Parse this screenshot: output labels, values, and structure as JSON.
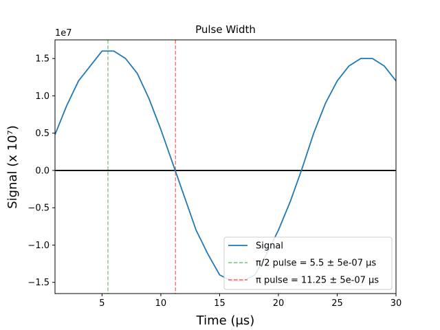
{
  "chart_data": {
    "type": "line",
    "title": "Pulse Width",
    "xlabel": "Time (μs)",
    "ylabel": "Signal (x 10⁷)",
    "y_offset_label": "1e7",
    "xlim": [
      1,
      30
    ],
    "ylim": [
      -1.65,
      1.75
    ],
    "xticks": [
      5,
      10,
      15,
      20,
      25,
      30
    ],
    "yticks": [
      -1.5,
      -1.0,
      -0.5,
      0.0,
      0.5,
      1.0,
      1.5
    ],
    "ytick_labels": [
      "−1.5",
      "−1.0",
      "−0.5",
      "0.0",
      "0.5",
      "1.0",
      "1.5"
    ],
    "grid": false,
    "legend_position": "lower-right",
    "series": [
      {
        "name": "Signal",
        "color": "#1f77b4",
        "x": [
          1,
          2,
          3,
          4,
          5,
          6,
          7,
          8,
          9,
          10,
          11,
          12,
          13,
          14,
          15,
          16,
          17,
          18,
          19,
          20,
          21,
          22,
          23,
          24,
          25,
          26,
          27,
          28,
          29,
          30
        ],
        "y": [
          0.48,
          0.87,
          1.2,
          1.4,
          1.6,
          1.6,
          1.5,
          1.3,
          0.96,
          0.55,
          0.1,
          -0.35,
          -0.8,
          -1.12,
          -1.4,
          -1.48,
          -1.48,
          -1.4,
          -1.12,
          -0.8,
          -0.42,
          0.02,
          0.5,
          0.9,
          1.2,
          1.4,
          1.5,
          1.5,
          1.4,
          1.2
        ]
      }
    ],
    "vlines": [
      {
        "name": "π/2 pulse = 5.5 ± 5e-07 μs",
        "x": 5.5,
        "color": "#2ca02c"
      },
      {
        "name": "π pulse = 11.25 ± 5e-07 μs",
        "x": 11.25,
        "color": "#ff0000"
      }
    ],
    "hline": {
      "y": 0,
      "color": "#000000"
    }
  }
}
